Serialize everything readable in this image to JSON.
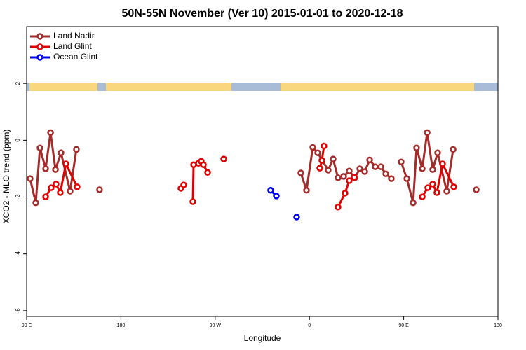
{
  "chart_data": {
    "type": "line",
    "title": "50N-55N November (Ver 10)   2015-01-01 to 2020-12-18",
    "x_label": "Longitude",
    "y_label": "XCO2 - MLO trend (ppm)",
    "xlim": [
      90,
      540
    ],
    "xticks": [
      {
        "value": 90,
        "label": "90 E"
      },
      180,
      {
        "value": 270,
        "label": "90 W"
      },
      {
        "value": 360,
        "label": "0"
      },
      {
        "value": 450,
        "label": "90 E"
      },
      {
        "value": 540,
        "label": "180"
      }
    ],
    "ylim": [
      -6.2,
      4
    ],
    "yticks": [
      2,
      0,
      -2,
      -4,
      -6
    ],
    "legend": "top-left",
    "series": [
      {
        "name": "Land Nadir",
        "color": "#a52a2a",
        "x": [
          93.3,
          98.7,
          102.7,
          108.1,
          112.8,
          117.5,
          122.8,
          131.5,
          137.5,
          null,
          159.6,
          null,
          351.8,
          357.2,
          363.2,
          367.9,
          377.9,
          382.6,
          387.3,
          392.7,
          398.0,
          403.4,
          408.1,
          412.8,
          417.5,
          422.8,
          428.2,
          432.9,
          438.2,
          null,
          447.6,
          453.0,
          459.0,
          462.3,
          467.7,
          472.4,
          477.7,
          482.4,
          491.1,
          497.2,
          null,
          519.3
        ],
        "values": [
          -1.35,
          -2.2,
          -0.27,
          -1.0,
          0.27,
          -1.03,
          -0.44,
          -1.79,
          -0.32,
          null,
          -1.74,
          null,
          -1.15,
          -1.76,
          -0.25,
          -0.44,
          -1.05,
          -0.66,
          -1.32,
          -1.27,
          -1.08,
          -1.32,
          -1.0,
          -1.1,
          -0.69,
          -0.93,
          -0.93,
          -1.18,
          -1.35,
          null,
          -0.76,
          -1.35,
          -2.2,
          -0.27,
          -1.0,
          0.27,
          -1.03,
          -0.44,
          -1.79,
          -0.32,
          null,
          -1.74
        ]
      },
      {
        "name": "Land Glint",
        "color": "#e00000",
        "x": [
          108.1,
          113.4,
          118.1,
          122.1,
          127.5,
          138.2,
          null,
          237.3,
          240.0,
          null,
          248.7,
          249.4,
          254.1,
          256.7,
          258.8,
          262.8,
          null,
          278.2,
          null,
          369.9,
          371.9,
          373.9,
          null,
          387.3,
          394.0,
          398.0,
          402.7,
          null,
          467.7,
          473.0,
          477.7,
          481.7,
          487.1,
          497.8
        ],
        "values": [
          -1.99,
          -1.67,
          -1.54,
          -1.84,
          -0.83,
          -1.64,
          null,
          -1.69,
          -1.57,
          null,
          -2.16,
          -0.86,
          -0.81,
          -0.74,
          -0.86,
          -1.13,
          null,
          -0.66,
          null,
          -0.98,
          -0.71,
          -0.2,
          null,
          -2.35,
          -1.86,
          -1.42,
          -1.3,
          null,
          -1.99,
          -1.67,
          -1.54,
          -1.84,
          -0.83,
          -1.64
        ]
      },
      {
        "name": "Ocean Glint",
        "color": "#0000ff",
        "x": [
          323.0,
          328.4,
          null,
          347.8
        ],
        "values": [
          -1.76,
          -1.96,
          null,
          -2.7
        ]
      }
    ]
  }
}
